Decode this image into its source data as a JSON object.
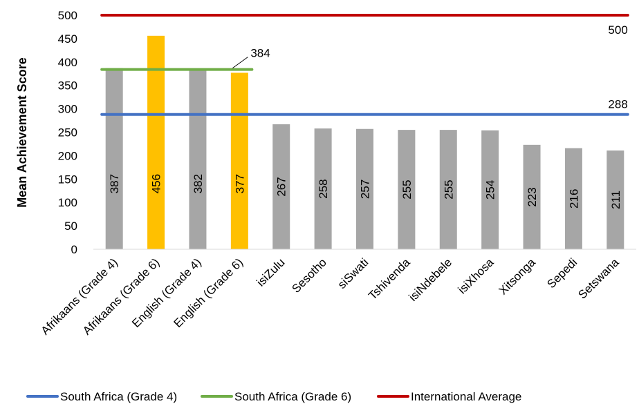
{
  "chart_data": {
    "type": "bar",
    "ylabel": "Mean Achievement Score",
    "ylim": [
      0,
      500
    ],
    "yticks": [
      0,
      50,
      100,
      150,
      200,
      250,
      300,
      350,
      400,
      450,
      500
    ],
    "categories": [
      "Afrikaans (Grade 4)",
      "Afrikaans (Grade 6)",
      "English (Grade 4)",
      "English (Grade 6)",
      "isiZulu",
      "Sesotho",
      "siSwati",
      "Tshivenda",
      "isiNdebele",
      "isiXhosa",
      "Xitsonga",
      "Sepedi",
      "Setswana"
    ],
    "values": [
      387,
      456,
      382,
      377,
      267,
      258,
      257,
      255,
      255,
      254,
      223,
      216,
      211
    ],
    "value_labels": [
      "387",
      "456",
      "382",
      "377",
      "267",
      "258",
      "257",
      "255",
      "255",
      "254",
      "223",
      "216",
      "211"
    ],
    "bar_colors": [
      "#a6a6a6",
      "#ffc000",
      "#a6a6a6",
      "#ffc000",
      "#a6a6a6",
      "#a6a6a6",
      "#a6a6a6",
      "#a6a6a6",
      "#a6a6a6",
      "#a6a6a6",
      "#a6a6a6",
      "#a6a6a6",
      "#a6a6a6"
    ],
    "reference_lines": [
      {
        "name": "South Africa (Grade 4)",
        "value": 288,
        "label": "288",
        "color": "#4472c4",
        "from_category": 0,
        "to_category": 12
      },
      {
        "name": "South Africa (Grade 6)",
        "value": 384,
        "label": "384",
        "color": "#70ad47",
        "from_category": 0,
        "to_category": 3
      },
      {
        "name": "International Average",
        "value": 500,
        "label": "500",
        "color": "#c00000",
        "from_category": 0,
        "to_category": 12
      }
    ],
    "legend_position": "bottom",
    "grid": false
  }
}
